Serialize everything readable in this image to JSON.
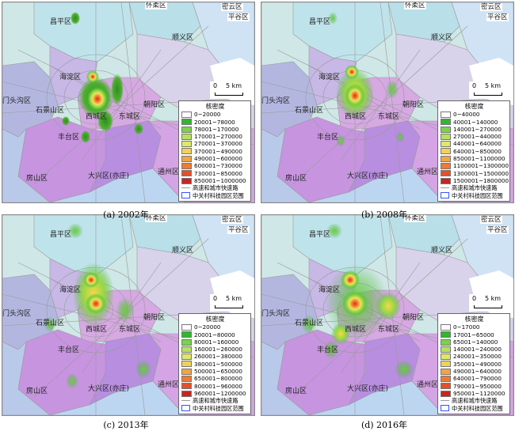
{
  "captions": [
    "(a) 2002年",
    "(b) 2008年",
    "(c) 2013年",
    "(d) 2016年"
  ],
  "districts": {
    "huairou": "怀柔区",
    "miyun": "密云区",
    "pinggu": "平谷区",
    "changping": "昌平区",
    "shunyi": "顺义区",
    "haidian": "海淀区",
    "mentougou": "门头沟区",
    "shijingshan": "石景山区",
    "chaoyang": "朝阳区",
    "xicheng": "西城区",
    "dongcheng": "东城区",
    "fengtai": "丰台区",
    "tongzhou": "通州区",
    "fangshan": "房山区",
    "daxing": "大兴区(亦庄)"
  },
  "scale": {
    "zero": "0",
    "label": "5 km"
  },
  "legend_common": {
    "title": "核密度",
    "road": "高速和城市快速路",
    "park": "中关村科技园区范围"
  },
  "legend_colors": [
    "#ffffff",
    "#2db82d",
    "#7ad34a",
    "#b7e15c",
    "#dfe86a",
    "#f0d257",
    "#f2a543",
    "#ee7a33",
    "#e3502a",
    "#c8251f"
  ],
  "legends": [
    {
      "classes": [
        "0~20000",
        "20001~78000",
        "78001~170000",
        "170001~270000",
        "270001~370000",
        "370001~490000",
        "490001~600000",
        "600001~730000",
        "730001~850000",
        "850001~1000000"
      ]
    },
    {
      "classes": [
        "0~40000",
        "40001~140000",
        "140001~270000",
        "270001~440000",
        "440001~640000",
        "640001~850000",
        "850001~1100000",
        "1100001~1300000",
        "1300001~1500000",
        "1500001~1800000"
      ]
    },
    {
      "classes": [
        "0~20000",
        "20001~80000",
        "80001~160000",
        "160001~260000",
        "260001~380000",
        "380001~500000",
        "500001~650000",
        "650001~800000",
        "800001~960000",
        "960001~1200000"
      ]
    },
    {
      "classes": [
        "0~17000",
        "17001~65000",
        "65001~140000",
        "140001~240000",
        "240001~350000",
        "350001~490000",
        "490001~640000",
        "640001~790000",
        "790001~950000",
        "950001~1120000"
      ]
    }
  ]
}
